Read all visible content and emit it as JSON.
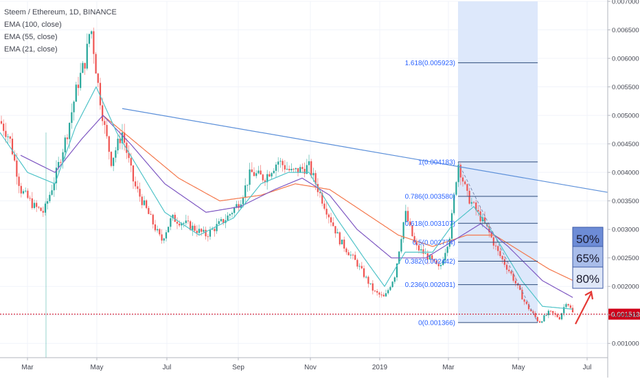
{
  "chart_title": "Steem / Ethereum, 1D, BINANCE",
  "indicators": [
    "EMA (100, close)",
    "EMA (55, close)",
    "EMA (21, close)"
  ],
  "colors": {
    "up": "#26a69a",
    "down": "#ef5350",
    "ema100": "#f4774b",
    "ema55": "#7e57c2",
    "ema21": "#4fc3c8",
    "trendline": "#5b8fd9",
    "fib_line": "#2c4a7a",
    "fib_zone": "#dbe7fb",
    "price_line": "#d0021b",
    "arrow": "#e53935",
    "box50": "#6d8cd6",
    "box65": "#a9bdea",
    "box80": "#dfe7f8"
  },
  "chart_data": {
    "type": "candlestick",
    "x_axis": {
      "tick_labels": [
        "Mar",
        "May",
        "Jul",
        "Sep",
        "Nov",
        "2019",
        "Mar",
        "May",
        "Jul"
      ]
    },
    "y_axis": {
      "range": [
        0.00075,
        0.007
      ],
      "tick_labels": [
        "0.001000",
        "0.001500",
        "0.002000",
        "0.002500",
        "0.003000",
        "0.003500",
        "0.004000",
        "0.004500",
        "0.005000",
        "0.005500",
        "0.006000",
        "0.006500",
        "0.007000"
      ]
    },
    "close_path": [
      [
        0,
        0.0049
      ],
      [
        14,
        0.0046
      ],
      [
        30,
        0.0037
      ],
      [
        50,
        0.0034
      ],
      [
        64,
        0.0033
      ],
      [
        80,
        0.0039
      ],
      [
        98,
        0.0047
      ],
      [
        112,
        0.0055
      ],
      [
        125,
        0.006
      ],
      [
        132,
        0.0066
      ],
      [
        142,
        0.0056
      ],
      [
        152,
        0.0048
      ],
      [
        162,
        0.0042
      ],
      [
        178,
        0.0047
      ],
      [
        195,
        0.0038
      ],
      [
        215,
        0.0033
      ],
      [
        235,
        0.0028
      ],
      [
        250,
        0.0032
      ],
      [
        270,
        0.0031
      ],
      [
        300,
        0.0029
      ],
      [
        330,
        0.0032
      ],
      [
        350,
        0.0035
      ],
      [
        365,
        0.004
      ],
      [
        385,
        0.0039
      ],
      [
        405,
        0.0042
      ],
      [
        425,
        0.004
      ],
      [
        450,
        0.0041
      ],
      [
        470,
        0.0035
      ],
      [
        495,
        0.0028
      ],
      [
        520,
        0.0024
      ],
      [
        545,
        0.0019
      ],
      [
        560,
        0.0018
      ],
      [
        575,
        0.0022
      ],
      [
        590,
        0.0033
      ],
      [
        605,
        0.0027
      ],
      [
        625,
        0.0025
      ],
      [
        640,
        0.0023
      ],
      [
        655,
        0.0029
      ],
      [
        667,
        0.00418
      ],
      [
        680,
        0.0036
      ],
      [
        695,
        0.0033
      ],
      [
        710,
        0.003
      ],
      [
        725,
        0.0026
      ],
      [
        745,
        0.0022
      ],
      [
        765,
        0.0017
      ],
      [
        785,
        0.00137
      ],
      [
        800,
        0.00155
      ],
      [
        815,
        0.00145
      ],
      [
        825,
        0.00175
      ],
      [
        835,
        0.00151
      ]
    ],
    "ema21_path": [
      [
        0,
        0.0047
      ],
      [
        40,
        0.004
      ],
      [
        80,
        0.0038
      ],
      [
        110,
        0.0048
      ],
      [
        140,
        0.0055
      ],
      [
        170,
        0.0047
      ],
      [
        200,
        0.0041
      ],
      [
        240,
        0.0033
      ],
      [
        290,
        0.0029
      ],
      [
        340,
        0.0032
      ],
      [
        380,
        0.0038
      ],
      [
        420,
        0.004
      ],
      [
        450,
        0.004
      ],
      [
        490,
        0.0032
      ],
      [
        530,
        0.0025
      ],
      [
        560,
        0.002
      ],
      [
        590,
        0.0026
      ],
      [
        630,
        0.0026
      ],
      [
        660,
        0.0031
      ],
      [
        690,
        0.0034
      ],
      [
        720,
        0.0029
      ],
      [
        760,
        0.0021
      ],
      [
        790,
        0.00165
      ],
      [
        835,
        0.0016
      ]
    ],
    "ema55_path": [
      [
        30,
        0.0043
      ],
      [
        80,
        0.004
      ],
      [
        120,
        0.0046
      ],
      [
        150,
        0.005
      ],
      [
        190,
        0.0045
      ],
      [
        240,
        0.0038
      ],
      [
        300,
        0.0033
      ],
      [
        350,
        0.0034
      ],
      [
        400,
        0.0037
      ],
      [
        440,
        0.0039
      ],
      [
        480,
        0.0036
      ],
      [
        520,
        0.003
      ],
      [
        570,
        0.0025
      ],
      [
        620,
        0.0025
      ],
      [
        660,
        0.0028
      ],
      [
        700,
        0.0031
      ],
      [
        740,
        0.0027
      ],
      [
        790,
        0.0021
      ],
      [
        835,
        0.0018
      ]
    ],
    "ema100_path": [
      [
        150,
        0.005
      ],
      [
        200,
        0.0045
      ],
      [
        260,
        0.0039
      ],
      [
        320,
        0.0035
      ],
      [
        380,
        0.0036
      ],
      [
        430,
        0.0038
      ],
      [
        480,
        0.0037
      ],
      [
        530,
        0.0033
      ],
      [
        580,
        0.0029
      ],
      [
        630,
        0.0027
      ],
      [
        680,
        0.0029
      ],
      [
        720,
        0.0029
      ],
      [
        760,
        0.0026
      ],
      [
        800,
        0.0023
      ],
      [
        835,
        0.0021
      ]
    ],
    "trendline": {
      "from": [
        178,
        0.00512
      ],
      "to": [
        885,
        0.00365
      ]
    },
    "fibonacci": {
      "levels": [
        {
          "label": "1.618(0.005923)",
          "value": 0.005923
        },
        {
          "label": "1(0.004183)",
          "value": 0.004183
        },
        {
          "label": "0.786(0.003580)",
          "value": 0.00358
        },
        {
          "label": "0.618(0.003107)",
          "value": 0.003107
        },
        {
          "label": "0.5(0.002774)",
          "value": 0.002774
        },
        {
          "label": "0.382(0.002442)",
          "value": 0.002442
        },
        {
          "label": "0.236(0.002031)",
          "value": 0.002031
        },
        {
          "label": "0(0.001366)",
          "value": 0.001366
        }
      ],
      "zone_top": 0.007,
      "zone_bottom": 0.00137
    },
    "current_price": {
      "label": "0.001513",
      "value": 0.001513
    },
    "annotations": [
      "50%",
      "65%",
      "80%"
    ]
  }
}
